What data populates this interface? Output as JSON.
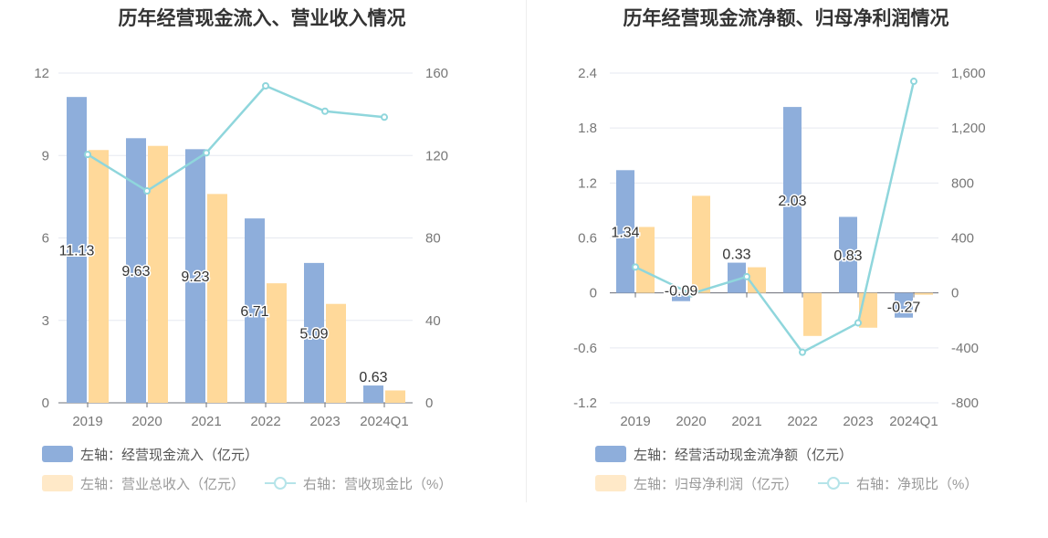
{
  "chart_data": [
    {
      "type": "bar",
      "title": "历年经营现金流入、营业收入情况",
      "categories": [
        "2019",
        "2020",
        "2021",
        "2022",
        "2023",
        "2024Q1"
      ],
      "left_axis": {
        "ticks": [
          "0",
          "3",
          "6",
          "9",
          "12"
        ],
        "range": [
          0,
          12
        ]
      },
      "right_axis": {
        "ticks": [
          "0",
          "40",
          "80",
          "120",
          "160"
        ],
        "range": [
          0,
          160
        ]
      },
      "series": [
        {
          "name": "左轴：经营现金流入（亿元）",
          "type": "bar",
          "axis": "left",
          "color": "#8eaedb",
          "values": [
            11.13,
            9.63,
            9.23,
            6.71,
            5.09,
            0.63
          ],
          "labels": [
            "11.13",
            "9.63",
            "9.23",
            "6.71",
            "5.09",
            "0.63"
          ]
        },
        {
          "name": "左轴：营业总收入（亿元）",
          "type": "bar",
          "axis": "left",
          "color": "#ffd99a",
          "values": [
            9.2,
            9.35,
            7.6,
            4.35,
            3.6,
            0.45
          ]
        },
        {
          "name": "右轴：营收现金比（%）",
          "type": "line",
          "axis": "right",
          "color": "#8fd6dc",
          "values": [
            120.5,
            102.8,
            121.3,
            153.8,
            141.5,
            138.6
          ]
        }
      ],
      "legend": [
        [
          "左轴：经营现金流入（亿元）"
        ],
        [
          "左轴：营业总收入（亿元）",
          "右轴：营收现金比（%）"
        ]
      ]
    },
    {
      "type": "bar",
      "title": "历年经营现金流净额、归母净利润情况",
      "categories": [
        "2019",
        "2020",
        "2021",
        "2022",
        "2023",
        "2024Q1"
      ],
      "left_axis": {
        "ticks": [
          "-1.2",
          "-0.6",
          "0",
          "0.6",
          "1.2",
          "1.8",
          "2.4"
        ],
        "range": [
          -1.2,
          2.4
        ]
      },
      "right_axis": {
        "ticks": [
          "-800",
          "-400",
          "0",
          "400",
          "800",
          "1,200",
          "1,600"
        ],
        "range": [
          -800,
          1600
        ]
      },
      "series": [
        {
          "name": "左轴：经营活动现金流净额（亿元）",
          "type": "bar",
          "axis": "left",
          "color": "#8eaedb",
          "values": [
            1.34,
            -0.09,
            0.33,
            2.03,
            0.83,
            -0.27
          ],
          "labels": [
            "1.34",
            "-0.09",
            "0.33",
            "2.03",
            "0.83",
            "-0.27"
          ]
        },
        {
          "name": "左轴：归母净利润（亿元）",
          "type": "bar",
          "axis": "left",
          "color": "#ffd99a",
          "values": [
            0.72,
            1.06,
            0.28,
            -0.47,
            -0.38,
            -0.02
          ]
        },
        {
          "name": "右轴：净现比（%）",
          "type": "line",
          "axis": "right",
          "color": "#8fd6dc",
          "values": [
            188,
            -6,
            118,
            -432,
            -218,
            1540
          ]
        }
      ],
      "legend": [
        [
          "左轴：经营活动现金流净额（亿元）"
        ],
        [
          "左轴：归母净利润（亿元）",
          "右轴：净现比（%）"
        ]
      ]
    }
  ]
}
